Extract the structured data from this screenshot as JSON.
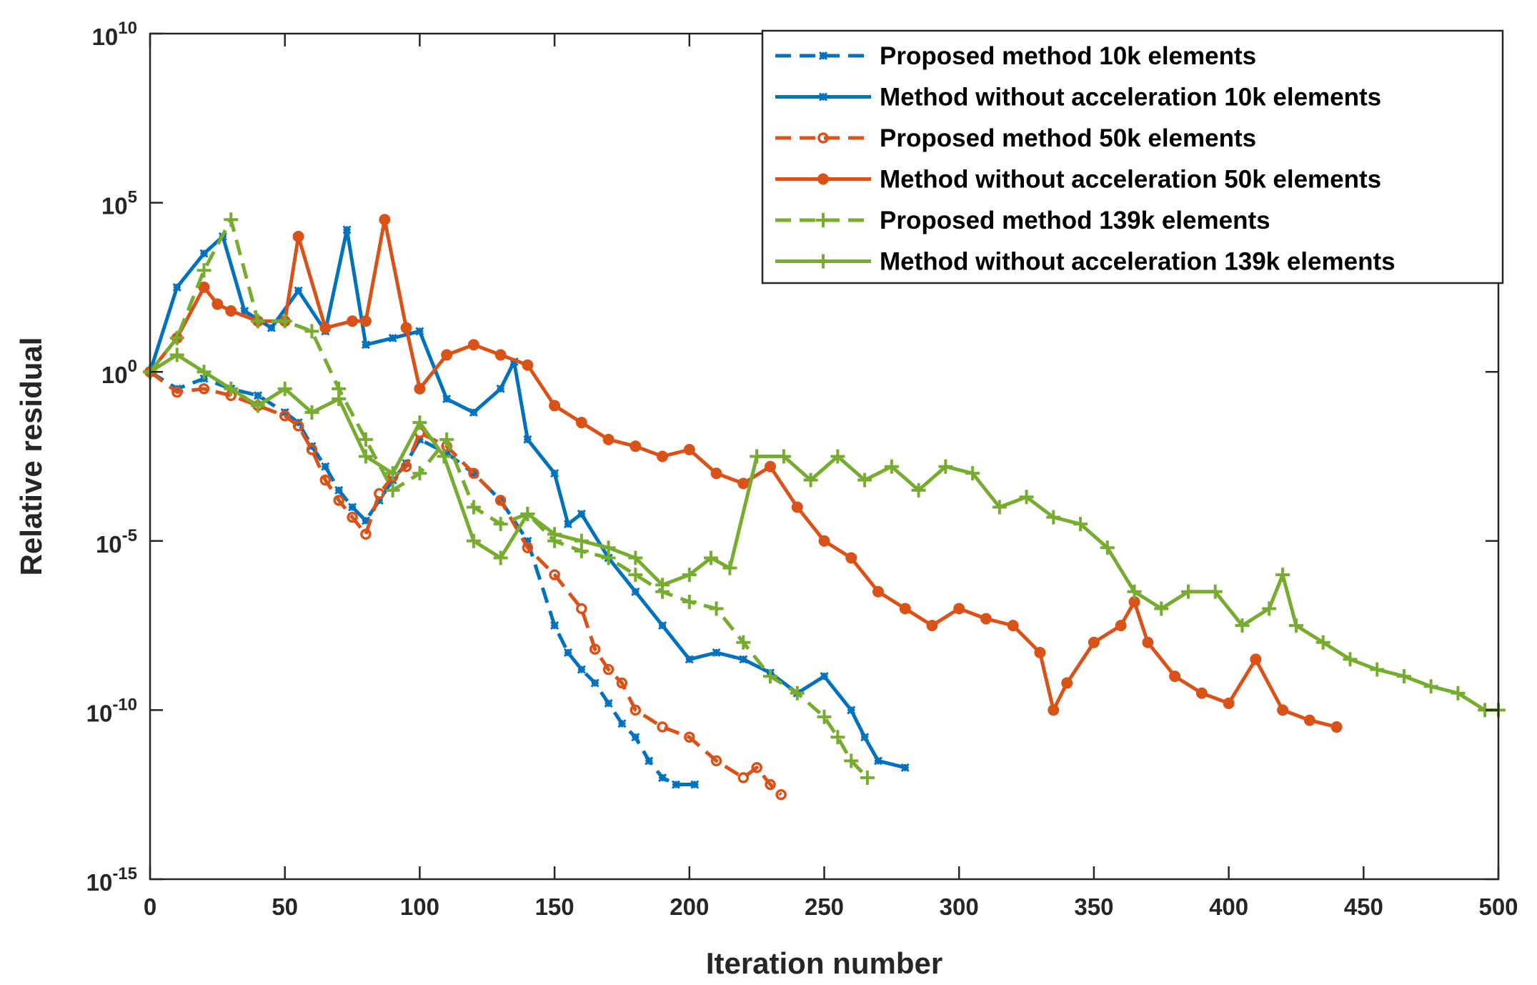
{
  "chart_data": {
    "type": "line",
    "title": "",
    "xlabel": "Iteration number",
    "ylabel": "Relative residual",
    "xlim": [
      0,
      500
    ],
    "ylim_log10": [
      -15,
      10
    ],
    "yscale": "log",
    "xticks": [
      0,
      50,
      100,
      150,
      200,
      250,
      300,
      350,
      400,
      450,
      500
    ],
    "yticks": [
      {
        "base": "10",
        "exp": "10",
        "value_log10": 10
      },
      {
        "base": "10",
        "exp": "5",
        "value_log10": 5
      },
      {
        "base": "10",
        "exp": "0",
        "value_log10": 0
      },
      {
        "base": "10",
        "exp": "-5",
        "value_log10": -5
      },
      {
        "base": "10",
        "exp": "-10",
        "value_log10": -10
      },
      {
        "base": "10",
        "exp": "-15",
        "value_log10": -15
      }
    ],
    "legend_position": "top-right",
    "series": [
      {
        "name": "Proposed method 10k elements",
        "color": "#0072BD",
        "dash": true,
        "marker": "star",
        "x": [
          0,
          10,
          20,
          30,
          40,
          50,
          55,
          60,
          65,
          70,
          75,
          80,
          85,
          90,
          95,
          100,
          110,
          120,
          130,
          140,
          150,
          155,
          160,
          165,
          170,
          175,
          180,
          185,
          190,
          195,
          202
        ],
        "log10y": [
          0,
          -0.5,
          -0.2,
          -0.5,
          -0.7,
          -1.2,
          -1.5,
          -2.2,
          -2.8,
          -3.5,
          -4.0,
          -4.4,
          -3.8,
          -3.2,
          -2.7,
          -2.0,
          -2.4,
          -3.0,
          -3.8,
          -5.0,
          -7.5,
          -8.3,
          -8.8,
          -9.2,
          -9.8,
          -10.4,
          -10.8,
          -11.5,
          -12.0,
          -12.2,
          -12.2
        ]
      },
      {
        "name": "Method without acceleration 10k elements",
        "color": "#0072BD",
        "dash": false,
        "marker": "star",
        "x": [
          0,
          10,
          20,
          27,
          35,
          45,
          55,
          65,
          73,
          80,
          90,
          100,
          110,
          120,
          130,
          135,
          140,
          150,
          155,
          160,
          170,
          180,
          190,
          200,
          210,
          220,
          230,
          240,
          250,
          260,
          265,
          270,
          280
        ],
        "log10y": [
          0,
          2.5,
          3.5,
          4.0,
          1.8,
          1.3,
          2.4,
          1.2,
          4.2,
          0.8,
          1.0,
          1.2,
          -0.8,
          -1.2,
          -0.5,
          0.3,
          -2.0,
          -3.0,
          -4.5,
          -4.2,
          -5.5,
          -6.5,
          -7.5,
          -8.5,
          -8.3,
          -8.5,
          -8.9,
          -9.5,
          -9.0,
          -10.0,
          -10.8,
          -11.5,
          -11.7
        ]
      },
      {
        "name": "Proposed method 50k elements",
        "color": "#D95319",
        "dash": true,
        "marker": "circle",
        "x": [
          0,
          10,
          20,
          30,
          40,
          50,
          55,
          60,
          65,
          70,
          75,
          80,
          85,
          90,
          95,
          100,
          110,
          120,
          130,
          140,
          150,
          160,
          165,
          170,
          175,
          180,
          190,
          200,
          210,
          220,
          225,
          230,
          234
        ],
        "log10y": [
          0,
          -0.6,
          -0.5,
          -0.7,
          -1.0,
          -1.3,
          -1.6,
          -2.3,
          -3.2,
          -3.8,
          -4.3,
          -4.8,
          -3.6,
          -3.1,
          -2.8,
          -1.8,
          -2.2,
          -3.0,
          -3.8,
          -5.2,
          -6.0,
          -7.0,
          -8.2,
          -8.8,
          -9.2,
          -10.0,
          -10.5,
          -10.8,
          -11.5,
          -12.0,
          -11.7,
          -12.2,
          -12.5
        ]
      },
      {
        "name": "Method without acceleration 50k elements",
        "color": "#D95319",
        "dash": false,
        "marker": "dot",
        "x": [
          0,
          10,
          20,
          25,
          30,
          40,
          50,
          55,
          65,
          75,
          80,
          87,
          95,
          100,
          110,
          120,
          130,
          140,
          150,
          160,
          170,
          180,
          190,
          200,
          210,
          220,
          230,
          240,
          250,
          260,
          270,
          280,
          290,
          300,
          310,
          320,
          330,
          335,
          340,
          350,
          360,
          365,
          370,
          380,
          390,
          400,
          410,
          420,
          430,
          440
        ],
        "log10y": [
          0,
          1.0,
          2.5,
          2.0,
          1.8,
          1.5,
          1.5,
          4.0,
          1.3,
          1.5,
          1.5,
          4.5,
          1.3,
          -0.5,
          0.5,
          0.8,
          0.5,
          0.2,
          -1.0,
          -1.5,
          -2.0,
          -2.2,
          -2.5,
          -2.3,
          -3.0,
          -3.3,
          -2.8,
          -4.0,
          -5.0,
          -5.5,
          -6.5,
          -7.0,
          -7.5,
          -7.0,
          -7.3,
          -7.5,
          -8.3,
          -10.0,
          -9.2,
          -8.0,
          -7.5,
          -6.8,
          -8.0,
          -9.0,
          -9.5,
          -9.8,
          -8.5,
          -10.0,
          -10.3,
          -10.5
        ]
      },
      {
        "name": "Proposed method 139k elements",
        "color": "#77AC30",
        "dash": true,
        "marker": "plus",
        "x": [
          0,
          10,
          20,
          30,
          40,
          50,
          60,
          70,
          80,
          90,
          100,
          110,
          120,
          130,
          140,
          150,
          160,
          170,
          180,
          190,
          200,
          210,
          220,
          230,
          240,
          250,
          255,
          260,
          266
        ],
        "log10y": [
          0,
          1.0,
          3.0,
          4.5,
          1.5,
          1.5,
          1.2,
          -0.5,
          -2.0,
          -3.5,
          -3.0,
          -2.0,
          -4.0,
          -4.5,
          -4.2,
          -5.0,
          -5.3,
          -5.5,
          -6.0,
          -6.5,
          -6.8,
          -7.0,
          -8.0,
          -9.0,
          -9.5,
          -10.2,
          -10.8,
          -11.5,
          -12.0
        ]
      },
      {
        "name": "Method without acceleration 139k elements",
        "color": "#77AC30",
        "dash": false,
        "marker": "plus",
        "x": [
          0,
          10,
          20,
          30,
          40,
          50,
          60,
          70,
          80,
          90,
          100,
          109,
          120,
          130,
          140,
          150,
          160,
          170,
          180,
          190,
          200,
          208,
          215,
          225,
          235,
          245,
          255,
          265,
          275,
          285,
          295,
          305,
          315,
          325,
          335,
          345,
          355,
          365,
          375,
          385,
          395,
          405,
          415,
          420,
          425,
          435,
          445,
          455,
          465,
          475,
          485,
          495,
          500
        ],
        "log10y": [
          0,
          0.5,
          0.0,
          -0.5,
          -1.0,
          -0.5,
          -1.2,
          -0.8,
          -2.5,
          -3.0,
          -1.5,
          -2.5,
          -5.0,
          -5.5,
          -4.2,
          -4.8,
          -5.0,
          -5.2,
          -5.5,
          -6.3,
          -6.0,
          -5.5,
          -5.8,
          -2.5,
          -2.5,
          -3.2,
          -2.5,
          -3.2,
          -2.8,
          -3.5,
          -2.8,
          -3.0,
          -4.0,
          -3.7,
          -4.3,
          -4.5,
          -5.2,
          -6.5,
          -7.0,
          -6.5,
          -6.5,
          -7.5,
          -7.0,
          -6.0,
          -7.5,
          -8.0,
          -8.5,
          -8.8,
          -9.0,
          -9.3,
          -9.5,
          -10.0,
          -10.0
        ]
      }
    ]
  }
}
